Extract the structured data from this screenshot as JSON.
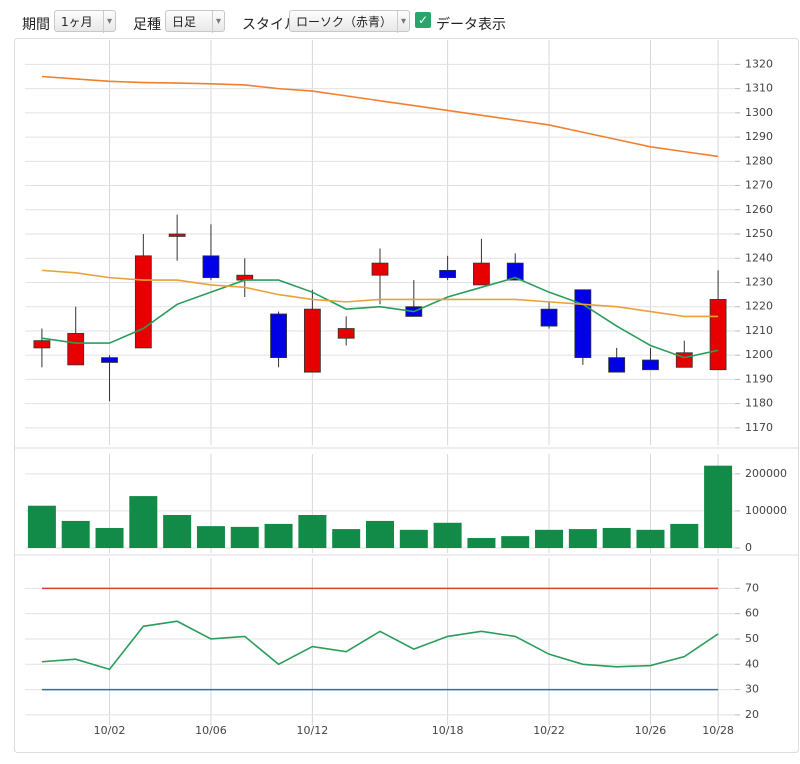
{
  "toolbar": {
    "period_label": "期間",
    "period_value": "1ヶ月",
    "bar_label": "足種",
    "bar_value": "日足",
    "style_label": "スタイル",
    "style_value": "ローソク（赤青）",
    "checkbox_label": "データ表示"
  },
  "chart_data": [
    {
      "type": "candlestick",
      "categories": [
        null,
        null,
        "10/02",
        null,
        null,
        "10/06",
        null,
        null,
        "10/12",
        null,
        null,
        null,
        "10/18",
        null,
        null,
        "10/22",
        null,
        null,
        "10/26",
        null,
        "10/28"
      ],
      "open": [
        1203,
        1196,
        1199,
        1203,
        1249,
        1241,
        1231,
        1217,
        1193,
        1207,
        1233,
        1220,
        1235,
        1229,
        1238,
        1219,
        1227,
        1199,
        1198,
        1195,
        1194
      ],
      "high": [
        1211,
        1220,
        1200,
        1250,
        1258,
        1254,
        1240,
        1218,
        1227,
        1216,
        1244,
        1231,
        1241,
        1248,
        1242,
        1222,
        1227,
        1203,
        1203,
        1206,
        1235
      ],
      "low": [
        1195,
        1196,
        1181,
        1203,
        1239,
        1231,
        1224,
        1195,
        1193,
        1204,
        1221,
        1216,
        1231,
        1229,
        1231,
        1211,
        1196,
        1193,
        1194,
        1195,
        1194
      ],
      "close": [
        1206,
        1209,
        1197,
        1241,
        1250,
        1232,
        1233,
        1199,
        1219,
        1211,
        1238,
        1216,
        1232,
        1238,
        1231,
        1212,
        1199,
        1193,
        1194,
        1201,
        1223
      ],
      "up_color": "#e60000",
      "down_color": "#0000e6",
      "series": [
        {
          "color": "#2a9d5c",
          "values": [
            1207,
            1205,
            1205,
            1211,
            1221,
            1226,
            1231,
            1231,
            1226,
            1219,
            1220,
            1218,
            1224,
            1228,
            1232,
            1226,
            1221,
            1212,
            1204,
            1199,
            1202
          ]
        },
        {
          "color": "#e8a23a",
          "values": [
            1235,
            1234,
            1232,
            1231,
            1231,
            1229,
            1228,
            1225,
            1223,
            1222,
            1223,
            1223,
            1223,
            1223,
            1223,
            1222,
            1221,
            1220,
            1218,
            1216,
            1216
          ]
        },
        {
          "color": "#f08030",
          "values": [
            1315,
            1314,
            1313,
            1312.5,
            1312.3,
            1312,
            1311.5,
            1310,
            1309,
            1307,
            1305,
            1303,
            1301,
            1299,
            1297,
            1295,
            1292,
            1289,
            1286,
            1284,
            1282
          ]
        }
      ],
      "ylim": [
        1165,
        1328
      ],
      "yticks": [
        1170,
        1180,
        1190,
        1200,
        1210,
        1220,
        1230,
        1240,
        1250,
        1260,
        1270,
        1280,
        1290,
        1300,
        1310,
        1320
      ],
      "grid": true
    },
    {
      "type": "bar",
      "categories": [
        null,
        null,
        "10/02",
        null,
        null,
        "10/06",
        null,
        null,
        "10/12",
        null,
        null,
        null,
        "10/18",
        null,
        null,
        "10/22",
        null,
        null,
        "10/26",
        null,
        "10/28"
      ],
      "values": [
        114000,
        73000,
        54000,
        140000,
        89000,
        59000,
        57000,
        65000,
        89000,
        51000,
        73000,
        49000,
        68000,
        27000,
        32000,
        49000,
        51000,
        54000,
        49000,
        65000,
        222000
      ],
      "color": "#128a48",
      "ylim": [
        0,
        240000
      ],
      "yticks": [
        0,
        100000,
        200000
      ],
      "grid": true
    },
    {
      "type": "line",
      "categories": [
        null,
        null,
        "10/02",
        null,
        null,
        "10/06",
        null,
        null,
        "10/12",
        null,
        null,
        null,
        "10/18",
        null,
        null,
        "10/22",
        null,
        null,
        "10/26",
        null,
        "10/28"
      ],
      "series": [
        {
          "color": "#2a9d5c",
          "values": [
            41,
            42,
            38,
            55,
            57,
            50,
            51,
            40,
            47,
            45,
            53,
            46,
            51,
            53,
            51,
            44,
            40,
            39,
            39.5,
            43,
            52
          ]
        }
      ],
      "hlines": [
        {
          "value": 70,
          "color": "#e0402a"
        },
        {
          "value": 30,
          "color": "#2a6fb0"
        }
      ],
      "ylim": [
        18,
        80
      ],
      "yticks": [
        20,
        30,
        40,
        50,
        60,
        70
      ],
      "grid": true
    }
  ]
}
